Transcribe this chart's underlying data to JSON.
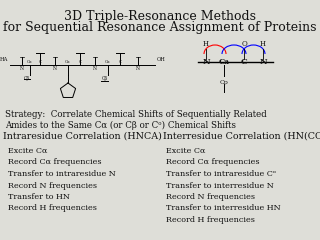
{
  "title_line1": "3D Triple-Resonance Methods",
  "title_line2": "for Sequential Resonance Assignment of Proteins",
  "strategy_line1": "Strategy:  Correlate Chemical Shifts of Sequentially Related",
  "strategy_line2": "Amides to the Same Cα (or Cβ or Cᵒ) Chemical Shifts",
  "intra_header": "Intraresidue Correlation (HNCA)",
  "inter_header": "Interresidue Correlation (HN(CO)CA",
  "intra_lines": [
    "Excite Cα",
    "Record Cα frequencies",
    "Transfer to intraresidue N",
    "Record N frequencies",
    "Transfer to HN",
    "Record H frequencies"
  ],
  "inter_lines": [
    "Excite Cα",
    "Record Cα frequencies",
    "Transfer to intraresidue Cᵒ",
    "Transfer to interresidue N",
    "Record N frequencies",
    "Transfer to interresidue HN",
    "Record H frequencies"
  ],
  "bg_color": "#deded8",
  "text_color": "#111111",
  "title_fontsize": 9.0,
  "header_fontsize": 6.8,
  "body_fontsize": 5.8,
  "strategy_fontsize": 6.2,
  "mol_label_fontsize": 3.8
}
